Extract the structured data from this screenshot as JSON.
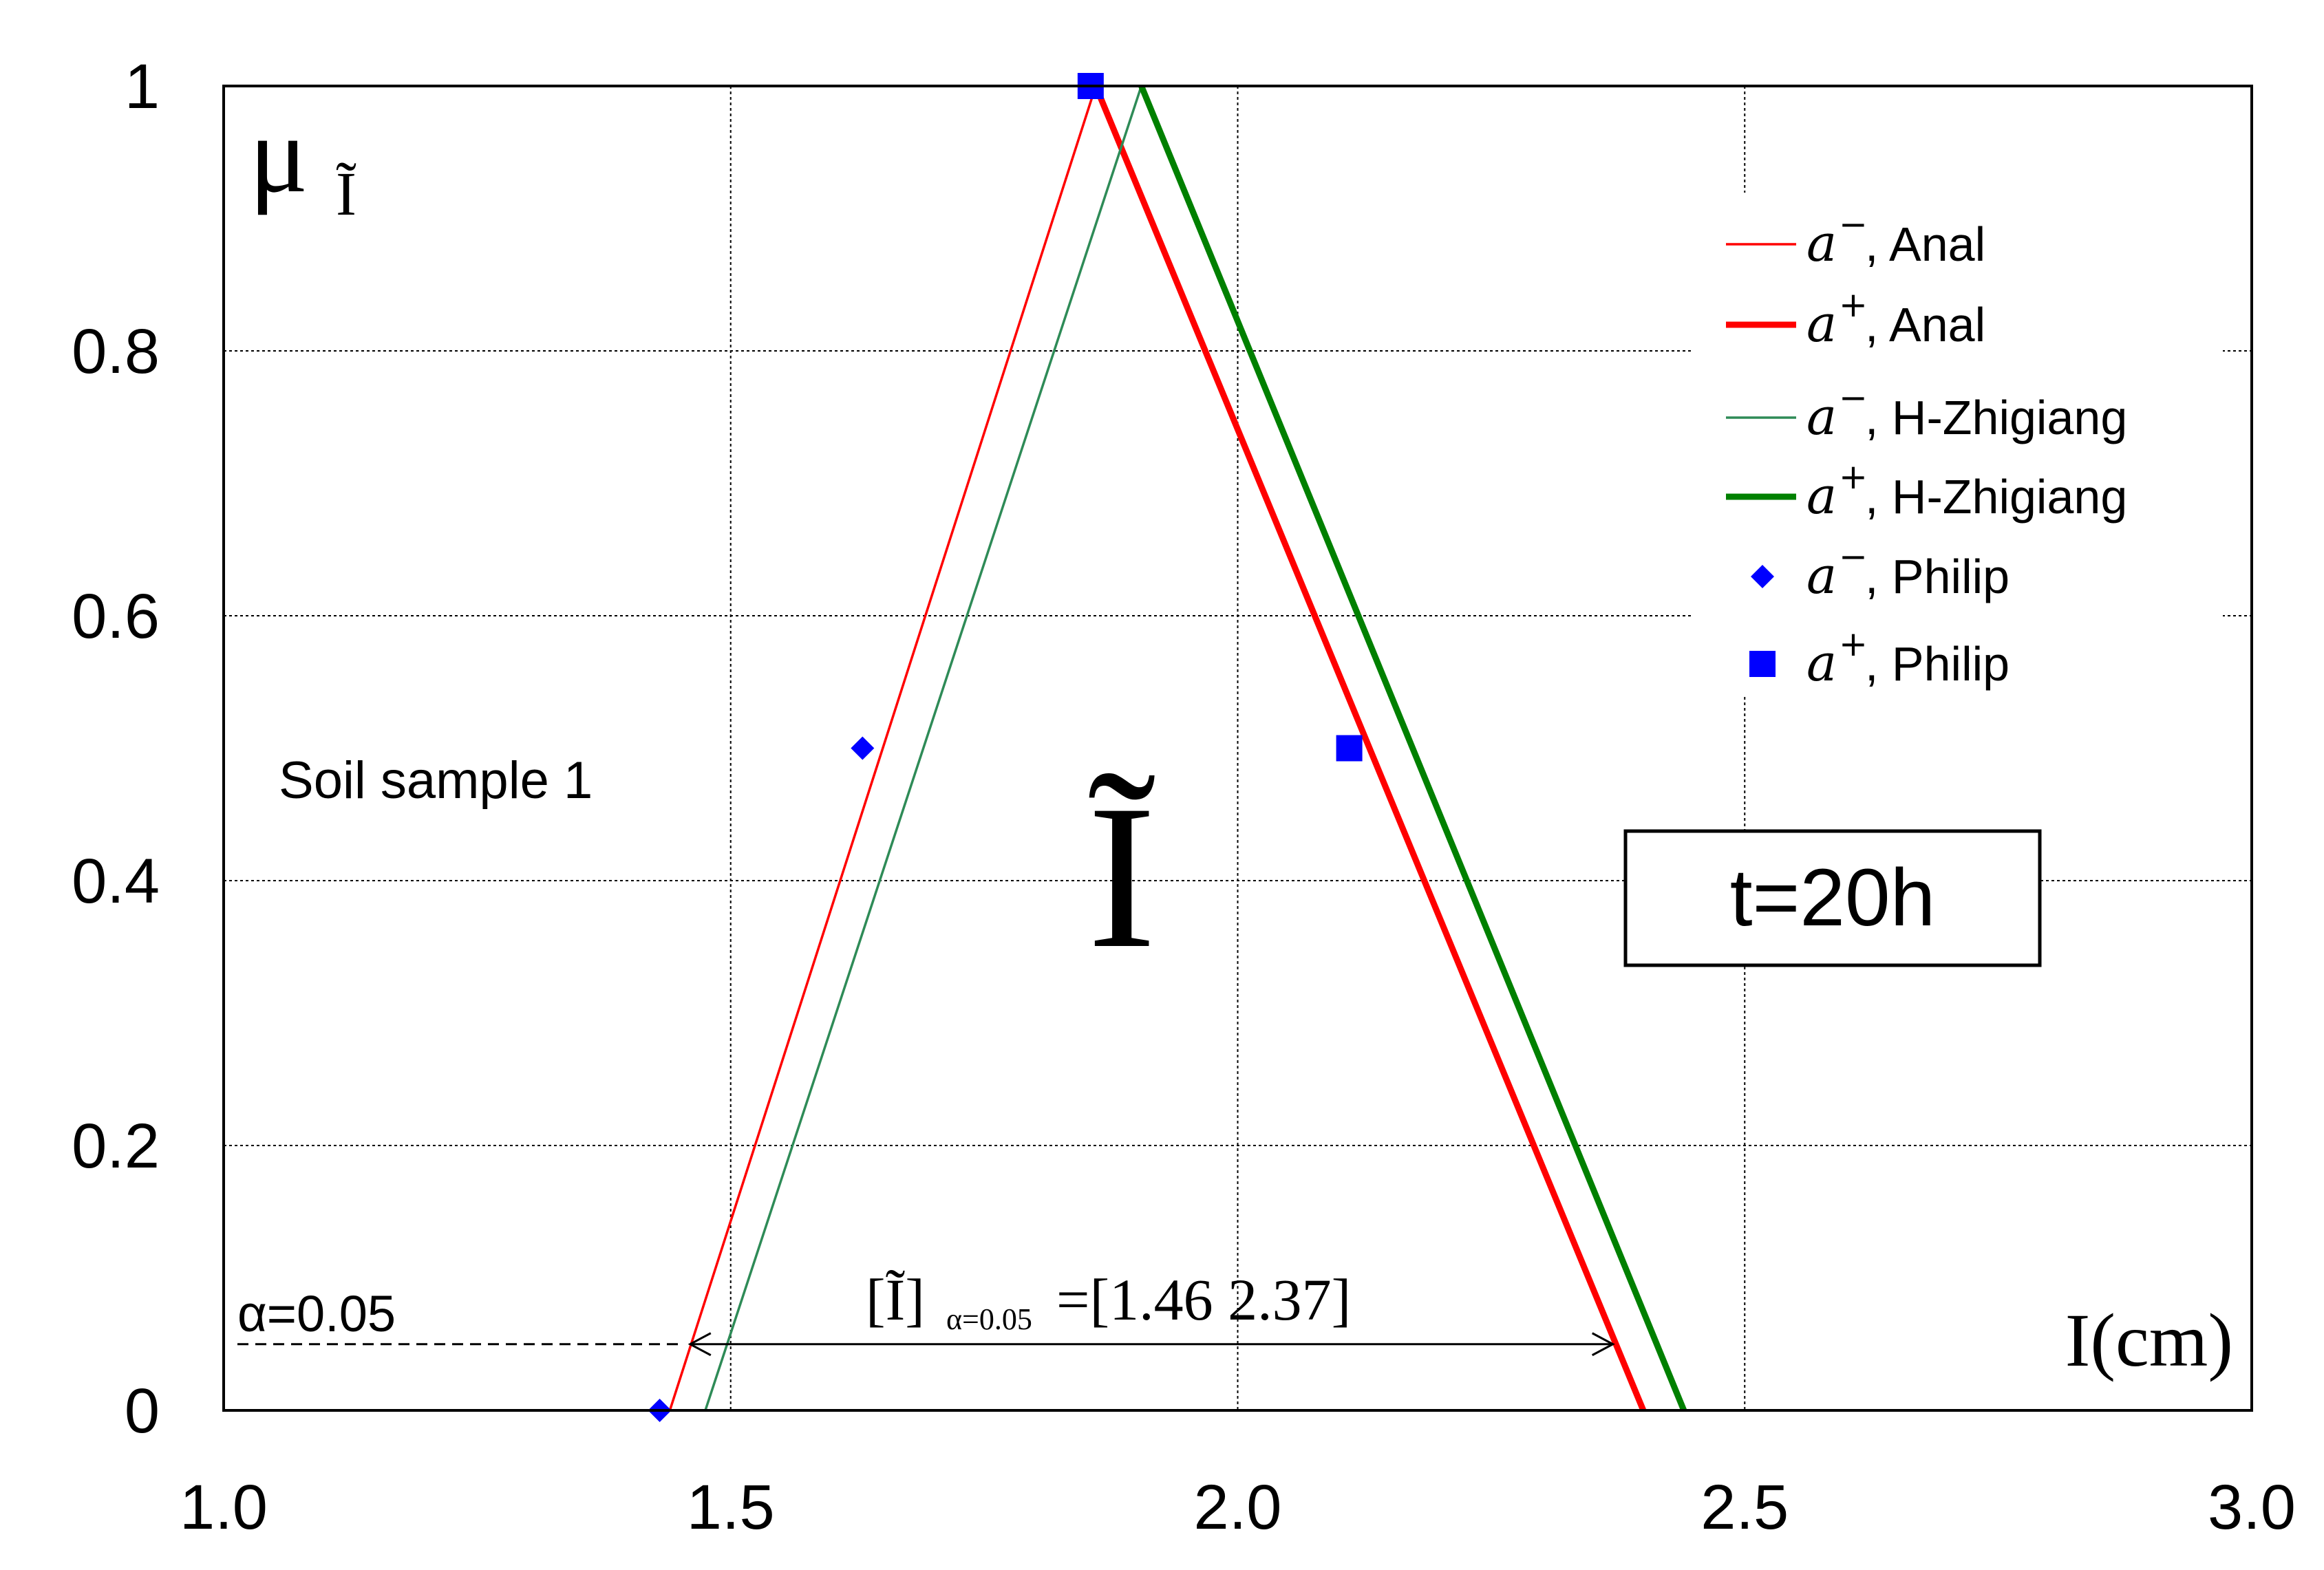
{
  "chart_data": {
    "type": "line",
    "xlim": [
      1.0,
      3.0
    ],
    "ylim": [
      0,
      1
    ],
    "x_ticks": [
      "1.0",
      "1.5",
      "2.0",
      "2.5",
      "3.0"
    ],
    "y_ticks": [
      "0",
      "0.2",
      "0.4",
      "0.6",
      "0.8",
      "1"
    ],
    "grid": true,
    "legend_position": "top-right",
    "ylabel_main": "μ",
    "ylabel_sub": "Ĩ",
    "xlabel": "I(cm)",
    "series": [
      {
        "name": "Anal",
        "prefix": "a",
        "sup": "−",
        "color": "#ff0000",
        "style": "thin-line",
        "points": [
          [
            1.44,
            0
          ],
          [
            1.86,
            1
          ]
        ]
      },
      {
        "name": "Anal",
        "prefix": "a",
        "sup": "+",
        "color": "#ff0000",
        "style": "thick-line",
        "points": [
          [
            1.86,
            1
          ],
          [
            2.4,
            0
          ]
        ]
      },
      {
        "name": "H-Zhigiang",
        "prefix": "a",
        "sup": "−",
        "color": "#2e8b57",
        "style": "thin-line",
        "points": [
          [
            1.475,
            0
          ],
          [
            1.905,
            1
          ]
        ]
      },
      {
        "name": "H-Zhigiang",
        "prefix": "a",
        "sup": "+",
        "color": "#008000",
        "style": "thick-line",
        "points": [
          [
            1.905,
            1
          ],
          [
            2.44,
            0
          ]
        ]
      },
      {
        "name": "Philip",
        "prefix": "a",
        "sup": "−",
        "color": "#0000ff",
        "style": "diamond",
        "points": [
          [
            1.43,
            0
          ],
          [
            1.63,
            0.5
          ]
        ]
      },
      {
        "name": "Philip",
        "prefix": "a",
        "sup": "+",
        "color": "#0000ff",
        "style": "square",
        "points": [
          [
            1.855,
            1
          ],
          [
            2.11,
            0.5
          ]
        ]
      }
    ],
    "annotations": {
      "sample": "Soil sample 1",
      "time_box": "t=20h",
      "alpha_label": "α=0.05",
      "alpha_value": 0.05,
      "interval_lhs": "[Ĩ]",
      "interval_sub": "α=0.05",
      "interval_rhs": " =[1.46  2.37]",
      "interval": [
        1.46,
        2.37
      ],
      "center_symbol": "Ĩ"
    }
  }
}
